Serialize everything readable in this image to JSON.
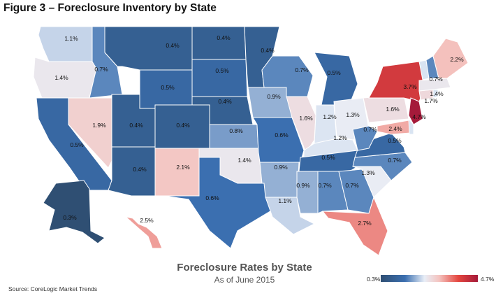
{
  "figure_title": "Figure 3 – Foreclosure Inventory by State",
  "legend": {
    "title": "Foreclosure Rates by State",
    "subtitle": "As of June 2015",
    "scale_min_label": "0.3%",
    "scale_max_label": "4.7%",
    "scale_min": 0.3,
    "scale_max": 4.7,
    "colors": [
      "#2f4f73",
      "#3b6fb0",
      "#e8eef7",
      "#f4c4c0",
      "#e4463f",
      "#a51a3a"
    ]
  },
  "source": "Source: CoreLogic Market Trends",
  "states": [
    {
      "code": "WA",
      "label": "1.1%",
      "value": 1.1
    },
    {
      "code": "OR",
      "label": "1.4%",
      "value": 1.4
    },
    {
      "code": "CA",
      "label": "0.5%",
      "value": 0.5
    },
    {
      "code": "ID",
      "label": "0.7%",
      "value": 0.7
    },
    {
      "code": "NV",
      "label": "1.9%",
      "value": 1.9
    },
    {
      "code": "MT",
      "label": "0.4%",
      "value": 0.4
    },
    {
      "code": "WY",
      "label": "0.5%",
      "value": 0.5
    },
    {
      "code": "UT",
      "label": "0.4%",
      "value": 0.4
    },
    {
      "code": "AZ",
      "label": "0.4%",
      "value": 0.4
    },
    {
      "code": "CO",
      "label": "0.4%",
      "value": 0.4
    },
    {
      "code": "NM",
      "label": "2.1%",
      "value": 2.1
    },
    {
      "code": "ND",
      "label": "0.4%",
      "value": 0.4
    },
    {
      "code": "SD",
      "label": "0.5%",
      "value": 0.5
    },
    {
      "code": "NE",
      "label": "0.4%",
      "value": 0.4
    },
    {
      "code": "KS",
      "label": "0.8%",
      "value": 0.8
    },
    {
      "code": "OK",
      "label": "1.4%",
      "value": 1.4
    },
    {
      "code": "TX",
      "label": "0.6%",
      "value": 0.6
    },
    {
      "code": "MN",
      "label": "0.4%",
      "value": 0.4
    },
    {
      "code": "IA",
      "label": "0.9%",
      "value": 0.9
    },
    {
      "code": "MO",
      "label": "0.6%",
      "value": 0.6
    },
    {
      "code": "AR",
      "label": "0.9%",
      "value": 0.9
    },
    {
      "code": "LA",
      "label": "1.1%",
      "value": 1.1
    },
    {
      "code": "WI",
      "label": "0.7%",
      "value": 0.7
    },
    {
      "code": "IL",
      "label": "1.6%",
      "value": 1.6
    },
    {
      "code": "MI",
      "label": "0.5%",
      "value": 0.5
    },
    {
      "code": "IN",
      "label": "1.2%",
      "value": 1.2
    },
    {
      "code": "OH",
      "label": "1.3%",
      "value": 1.3
    },
    {
      "code": "KY",
      "label": "1.2%",
      "value": 1.2
    },
    {
      "code": "TN",
      "label": "0.5%",
      "value": 0.5
    },
    {
      "code": "MS",
      "label": "0.9%",
      "value": 0.9
    },
    {
      "code": "AL",
      "label": "0.7%",
      "value": 0.7
    },
    {
      "code": "GA",
      "label": "0.7%",
      "value": 0.7
    },
    {
      "code": "FL",
      "label": "2.7%",
      "value": 2.7
    },
    {
      "code": "SC",
      "label": "1.3%",
      "value": 1.3
    },
    {
      "code": "NC",
      "label": "0.7%",
      "value": 0.7
    },
    {
      "code": "VA",
      "label": "0.5%",
      "value": 0.5
    },
    {
      "code": "WV",
      "label": "0.7%",
      "value": 0.7
    },
    {
      "code": "PA",
      "label": "1.6%",
      "value": 1.6
    },
    {
      "code": "NY",
      "label": "3.7%",
      "value": 3.7
    },
    {
      "code": "NJ",
      "label": "4.7%",
      "value": 4.7
    },
    {
      "code": "MD",
      "label": "2.4%",
      "value": 2.4
    },
    {
      "code": "DE",
      "label": "",
      "value": null
    },
    {
      "code": "CT",
      "label": "1.7%",
      "value": 1.7
    },
    {
      "code": "RI",
      "label": "",
      "value": null
    },
    {
      "code": "MA",
      "label": "1.4%",
      "value": 1.4
    },
    {
      "code": "VT",
      "label": "",
      "value": null
    },
    {
      "code": "NH",
      "label": "0.7%",
      "value": 0.7
    },
    {
      "code": "ME",
      "label": "2.2%",
      "value": 2.2
    },
    {
      "code": "AK",
      "label": "0.3%",
      "value": 0.3
    },
    {
      "code": "HI",
      "label": "2.5%",
      "value": 2.5
    }
  ]
}
